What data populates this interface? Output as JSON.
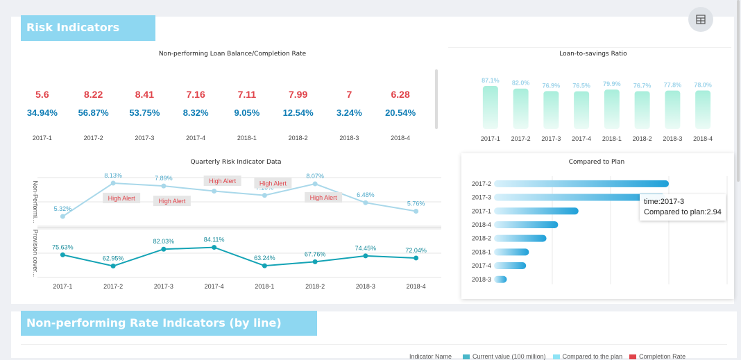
{
  "header": {
    "title": "Risk Indicators"
  },
  "section2": {
    "title": "Non-performing Rate Indicators (by line)"
  },
  "npl_tiles": {
    "title": "Non-performing Loan Balance/Completion Rate",
    "items": [
      {
        "period": "2017-1",
        "balance": "5.6",
        "rate": "34.94%"
      },
      {
        "period": "2017-2",
        "balance": "8.22",
        "rate": "56.87%"
      },
      {
        "period": "2017-3",
        "balance": "8.41",
        "rate": "53.75%"
      },
      {
        "period": "2017-4",
        "balance": "7.16",
        "rate": "8.32%"
      },
      {
        "period": "2018-1",
        "balance": "7.11",
        "rate": "9.05%"
      },
      {
        "period": "2018-2",
        "balance": "7.99",
        "rate": "12.54%"
      },
      {
        "period": "2018-3",
        "balance": "7",
        "rate": "3.24%"
      },
      {
        "period": "2018-4",
        "balance": "6.28",
        "rate": "20.54%"
      }
    ]
  },
  "chart_data": [
    {
      "type": "bar",
      "title": "Loan-to-savings Ratio",
      "categories": [
        "2017-1",
        "2017-2",
        "2017-3",
        "2017-4",
        "2018-1",
        "2018-2",
        "2018-3",
        "2018-4"
      ],
      "values": [
        87.1,
        82.0,
        76.9,
        76.5,
        79.9,
        76.7,
        77.8,
        78.0
      ],
      "labels": [
        "87.1%",
        "82.0%",
        "76.9%",
        "76.5%",
        "79.9%",
        "76.7%",
        "77.8%",
        "78.0%"
      ],
      "color": "#a8eedb"
    },
    {
      "type": "line",
      "title": "Quarterly Risk Indicator Data",
      "categories": [
        "2017-1",
        "2017-2",
        "2017-3",
        "2017-4",
        "2018-1",
        "2018-2",
        "2018-3",
        "2018-4"
      ],
      "series": [
        {
          "name": "Non-Performi...",
          "values": [
            5.32,
            8.13,
            7.89,
            7.46,
            7.1,
            8.07,
            6.48,
            5.76
          ],
          "labels": [
            "5.32%",
            "8.13%",
            "7.89%",
            "7.46%",
            "7.10%",
            "8.07%",
            "6.48%",
            "5.76%"
          ],
          "color": "#a9d8ea",
          "ylim": [
            4.5,
            8.6
          ]
        },
        {
          "name": "Provision cover...",
          "values": [
            75.63,
            62.95,
            82.03,
            84.11,
            63.24,
            67.76,
            74.45,
            72.04
          ],
          "labels": [
            "75.63%",
            "62.95%",
            "82.03%",
            "84.11%",
            "63.24%",
            "67.76%",
            "74.45%",
            "72.04%"
          ],
          "color": "#14a3b5",
          "ylim": [
            50,
            105
          ]
        }
      ],
      "annotations": [
        {
          "text": "High Alert",
          "category": "2017-2",
          "offset": 0.55,
          "y": 6.85
        },
        {
          "text": "High Alert",
          "category": "2017-3",
          "offset": 0.55,
          "y": 6.6
        },
        {
          "text": "High Alert",
          "category": "2017-4",
          "offset": 0.55,
          "y": 8.3
        },
        {
          "text": "High Alert",
          "category": "2018-1",
          "offset": 0.55,
          "y": 8.1
        },
        {
          "text": "High Alert",
          "category": "2018-2",
          "offset": 0.55,
          "y": 6.9
        }
      ],
      "annotation_colors": {
        "bg": "#e6e6e6",
        "text": "#e0434a"
      }
    },
    {
      "type": "bar",
      "orientation": "horizontal",
      "title": "Compared to Plan",
      "categories": [
        "2017-2",
        "2017-3",
        "2017-1",
        "2018-4",
        "2018-2",
        "2018-1",
        "2017-4",
        "2018-3"
      ],
      "values": [
        3.0,
        2.94,
        1.45,
        1.1,
        0.9,
        0.6,
        0.55,
        0.22
      ],
      "xlim": [
        0,
        4
      ],
      "color_start": "#d8f1fb",
      "color_end": "#1fa0d8"
    }
  ],
  "tooltip": {
    "line1": "time:2017-3",
    "line2": "Compared to plan:2.94"
  },
  "legend": {
    "title": "Indicator Name",
    "items": [
      {
        "label": "Current value (100 million)",
        "color": "#4ab7c9"
      },
      {
        "label": "Compared to the plan",
        "color": "#8ee3f5"
      },
      {
        "label": "Completion Rate",
        "color": "#e0434a"
      }
    ]
  }
}
